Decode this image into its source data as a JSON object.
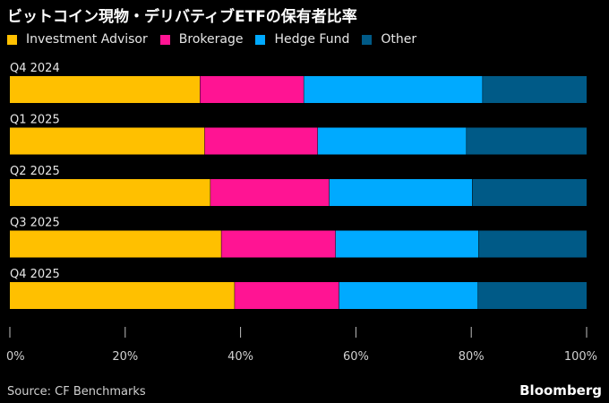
{
  "chart_data": {
    "type": "bar",
    "orientation": "horizontal",
    "stacked": true,
    "title": "ビットコイン現物・デリバティブETFの保有者比率",
    "categories": [
      "Q4 2024",
      "Q1 2025",
      "Q2 2025",
      "Q3 2025",
      "Q4 2025"
    ],
    "series": [
      {
        "name": "Investment Advisor",
        "color": "#ffc000",
        "values": [
          33.0,
          33.8,
          34.8,
          36.7,
          39.0
        ]
      },
      {
        "name": "Brokerage",
        "color": "#ff1493",
        "values": [
          18.0,
          19.6,
          20.6,
          19.8,
          18.1
        ]
      },
      {
        "name": "Hedge Fund",
        "color": "#00aaff",
        "values": [
          31.0,
          25.8,
          24.8,
          24.8,
          24.1
        ]
      },
      {
        "name": "Other",
        "color": "#005a87",
        "values": [
          18.0,
          20.8,
          19.8,
          18.7,
          18.8
        ]
      }
    ],
    "xlim": [
      0,
      100
    ],
    "x_ticks": [
      "0%",
      "20%",
      "40%",
      "60%",
      "80%",
      "100%"
    ],
    "x_tick_values": [
      0,
      20,
      40,
      60,
      80,
      100
    ],
    "grid": false,
    "legend_position": "top-left"
  },
  "footer": {
    "source": "Source: CF Benchmarks",
    "brand": "Bloomberg"
  }
}
